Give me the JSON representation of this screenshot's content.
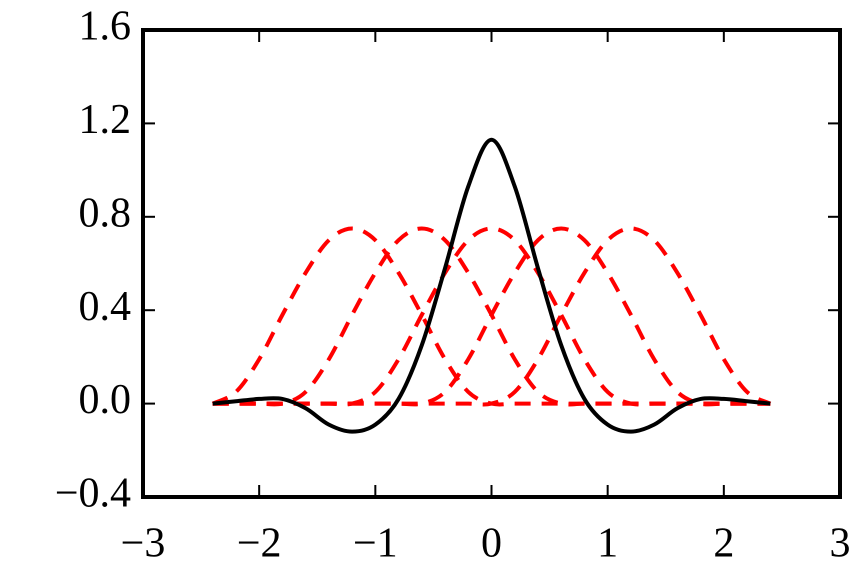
{
  "chart_data": {
    "type": "line",
    "x": [
      -2.4,
      -2.2,
      -2.0,
      -1.8,
      -1.6,
      -1.4,
      -1.2,
      -1.0,
      -0.8,
      -0.6,
      -0.4,
      -0.2,
      0,
      0.2,
      0.4,
      0.6,
      0.8,
      1.0,
      1.2,
      1.4,
      1.6,
      1.8,
      2.0,
      2.2,
      2.4
    ],
    "series": [
      {
        "color": "#ff0000",
        "dashed": true,
        "values": [
          0,
          0.05,
          0.19,
          0.38,
          0.56,
          0.7,
          0.75,
          0.7,
          0.56,
          0.38,
          0.19,
          0.05,
          0,
          0,
          0,
          0,
          0,
          0,
          0,
          0,
          0,
          0,
          0,
          0,
          0
        ]
      },
      {
        "color": "#ff0000",
        "dashed": true,
        "values": [
          0,
          0,
          0,
          0,
          0.05,
          0.19,
          0.38,
          0.56,
          0.7,
          0.75,
          0.7,
          0.56,
          0.38,
          0.19,
          0.05,
          0,
          0,
          0,
          0,
          0,
          0,
          0,
          0,
          0,
          0
        ]
      },
      {
        "color": "#ff0000",
        "dashed": true,
        "values": [
          0,
          0,
          0,
          0,
          0,
          0,
          0,
          0.05,
          0.19,
          0.38,
          0.56,
          0.7,
          0.75,
          0.7,
          0.56,
          0.38,
          0.19,
          0.05,
          0,
          0,
          0,
          0,
          0,
          0,
          0
        ]
      },
      {
        "color": "#ff0000",
        "dashed": true,
        "values": [
          0,
          0,
          0,
          0,
          0,
          0,
          0,
          0,
          0,
          0,
          0.05,
          0.19,
          0.38,
          0.56,
          0.7,
          0.75,
          0.7,
          0.56,
          0.38,
          0.19,
          0.05,
          0,
          0,
          0,
          0
        ]
      },
      {
        "color": "#ff0000",
        "dashed": true,
        "values": [
          0,
          0,
          0,
          0,
          0,
          0,
          0,
          0,
          0,
          0,
          0,
          0,
          0,
          0.05,
          0.19,
          0.38,
          0.56,
          0.7,
          0.75,
          0.7,
          0.56,
          0.38,
          0.19,
          0.05,
          0
        ]
      },
      {
        "color": "#000000",
        "dashed": false,
        "values": [
          0,
          0.01,
          0.02,
          0.02,
          -0.02,
          -0.09,
          -0.12,
          -0.09,
          0.02,
          0.25,
          0.58,
          0.93,
          1.13,
          0.93,
          0.58,
          0.25,
          0.02,
          -0.09,
          -0.12,
          -0.09,
          -0.02,
          0.02,
          0.02,
          0.01,
          0
        ]
      }
    ],
    "xlim": [
      -3,
      3
    ],
    "xticks": [
      {
        "value": -3,
        "label": "−3"
      },
      {
        "value": -2,
        "label": "−2"
      },
      {
        "value": -1,
        "label": "−1"
      },
      0,
      1,
      2,
      3
    ],
    "ylim": [
      -0.4,
      1.6
    ],
    "yticks": [
      {
        "value": -0.4,
        "label": "−0.4"
      },
      {
        "value": 0,
        "label": "0.0"
      },
      0.4,
      0.8,
      1.2,
      1.6
    ]
  }
}
